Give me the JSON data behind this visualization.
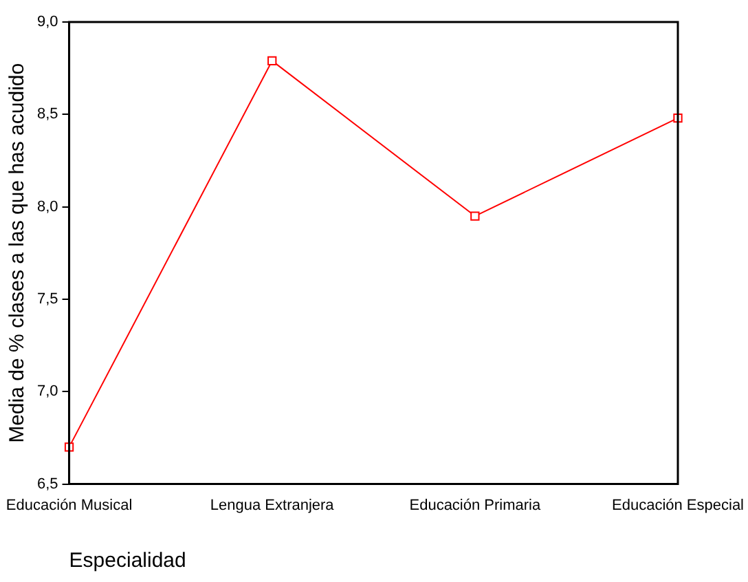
{
  "chart_data": {
    "type": "line",
    "xlabel": "Especialidad",
    "ylabel": "Media de % clases a las que has acudido",
    "categories": [
      "Educación Musical",
      "Lengua Extranjera",
      "Educación Primaria",
      "Educación Especial"
    ],
    "series": [
      {
        "color": "#ff0000",
        "values": [
          6.7,
          8.79,
          7.95,
          8.48
        ]
      }
    ],
    "ylim": [
      6.5,
      9.0
    ],
    "yticks": [
      {
        "value": 6.5,
        "label": "6,5"
      },
      {
        "value": 7.0,
        "label": "7,0"
      },
      {
        "value": 7.5,
        "label": "7,5"
      },
      {
        "value": 8.0,
        "label": "8,0"
      },
      {
        "value": 8.5,
        "label": "8,5"
      },
      {
        "value": 9.0,
        "label": "9,0"
      }
    ],
    "grid": false,
    "legend": false,
    "marker": "square",
    "line_style": "solid"
  }
}
